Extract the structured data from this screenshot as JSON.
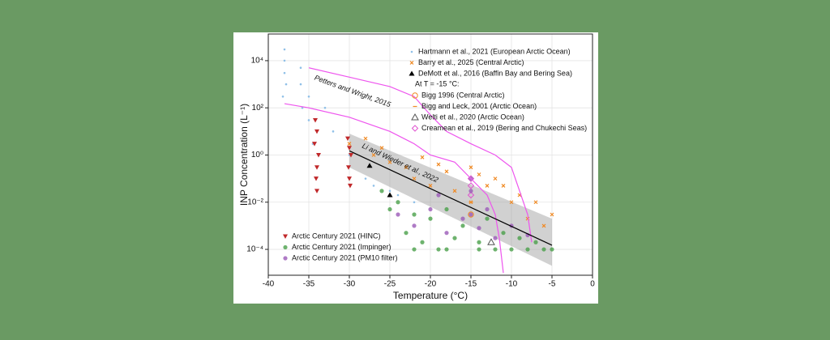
{
  "chart_data": {
    "type": "scatter",
    "xlabel": "Temperature (°C)",
    "ylabel": "INP Concentration (L⁻¹)",
    "xlim": [
      -40,
      0
    ],
    "xticks": [
      -40,
      -35,
      -30,
      -25,
      -20,
      -15,
      -10,
      -5,
      0
    ],
    "ylim": [
      8e-06,
      135000
    ],
    "log_y": true,
    "grid": true,
    "yticks": [
      {
        "value": 0.0001,
        "label": "10⁻⁴"
      },
      {
        "value": 0.01,
        "label": "10⁻²"
      },
      {
        "value": 1,
        "label": "10⁰"
      },
      {
        "value": 100,
        "label": "10²"
      },
      {
        "value": 10000,
        "label": "10⁴"
      }
    ],
    "legend_header": "At T = -15 °C:",
    "annotations": [
      "Petters and Wright, 2015",
      "Li and Wieder et al., 2022"
    ],
    "band": {
      "color": "#9a9a9a",
      "x": [
        -30,
        -5
      ],
      "lower": [
        0.3,
        2e-05
      ],
      "upper": [
        8,
        0.002
      ]
    },
    "curves": [
      {
        "color": "#ee55ee",
        "x": [
          -35,
          -30,
          -25,
          -22,
          -20,
          -18,
          -15,
          -12,
          -10,
          -9,
          -8,
          -7.5
        ],
        "values": [
          5000,
          2000,
          800,
          300,
          50,
          10,
          3,
          1,
          0.3,
          0.03,
          0.003,
          0.0002
        ]
      },
      {
        "color": "#ee55ee",
        "x": [
          -38,
          -35,
          -30,
          -25,
          -22,
          -20,
          -17,
          -15,
          -13,
          -12,
          -11.5,
          -11
        ],
        "values": [
          150,
          100,
          40,
          10,
          3,
          1,
          0.5,
          0.1,
          0.02,
          0.003,
          0.0003,
          1e-05
        ]
      },
      {
        "color": "#000000",
        "x": [
          -30,
          -5
        ],
        "values": [
          1.5,
          0.00015
        ]
      }
    ],
    "series": [
      {
        "name": "Hartmann et al., 2021 (European Arctic Ocean)",
        "color": "#8fc0e8",
        "marker": "dot",
        "x": [
          -38,
          -38,
          -38,
          -37.8,
          -38.2,
          -36,
          -36,
          -35.8,
          -35,
          -35,
          -34.5,
          -33,
          -32,
          -30,
          -28,
          -27,
          -25,
          -24,
          -22
        ],
        "values": [
          30000,
          10000,
          3000,
          1000,
          300,
          5000,
          1000,
          100,
          300,
          30,
          3,
          100,
          10,
          1,
          0.1,
          0.05,
          0.03,
          0.02,
          0.01
        ]
      },
      {
        "name": "Barry et al., 2025 (Central Arctic)",
        "color": "#f08a24",
        "marker": "x",
        "x": [
          -30,
          -28,
          -27,
          -25,
          -23,
          -22,
          -20,
          -18,
          -17,
          -15,
          -15,
          -13,
          -12,
          -10,
          -8,
          -6,
          -5,
          -26,
          -21,
          -19,
          -14,
          -11,
          -9,
          -7
        ],
        "values": [
          3,
          5,
          1,
          0.5,
          0.3,
          0.1,
          0.05,
          0.2,
          0.03,
          0.3,
          0.01,
          0.05,
          0.1,
          0.01,
          0.002,
          0.001,
          0.003,
          2,
          0.8,
          0.4,
          0.15,
          0.05,
          0.02,
          0.01
        ]
      },
      {
        "name": "DeMott et al., 2016 (Baffin Bay and Bering Sea)",
        "color": "#000000",
        "marker": "triangle",
        "x": [
          -27.5,
          -25
        ],
        "values": [
          0.35,
          0.02
        ]
      },
      {
        "name": "Bigg 1996 (Central Arctic)",
        "color": "#f08a24",
        "marker": "circle-open",
        "x": [
          -15
        ],
        "values": [
          0.003
        ]
      },
      {
        "name": "Bigg and Leck, 2001 (Arctic Ocean)",
        "color": "#f08a24",
        "marker": "dash",
        "x": [
          -15
        ],
        "values": [
          0.01
        ]
      },
      {
        "name": "Welti et al., 2020 (Arctic Ocean)",
        "color": "#555555",
        "marker": "triangle-open",
        "x": [
          -12.5
        ],
        "values": [
          0.0002
        ]
      },
      {
        "name": "Creamean et al., 2019 (Bering and Chukechi Seas)",
        "color": "#e055d0",
        "marker": "diamond-open",
        "x": [
          -15,
          -15,
          -15
        ],
        "values": [
          0.1,
          0.05,
          0.02
        ]
      },
      {
        "name": "Arctic Century 2021 (HINC)",
        "color": "#c0282a",
        "marker": "tri-down",
        "x": [
          -34.2,
          -34,
          -34.3,
          -33.8,
          -34,
          -34.1,
          -34,
          -30.2,
          -30,
          -29.8,
          -30.1,
          -30,
          -29.9
        ],
        "values": [
          30,
          10,
          3,
          1,
          0.3,
          0.1,
          0.03,
          5,
          2,
          1,
          0.3,
          0.1,
          0.05
        ]
      },
      {
        "name": "Arctic Century 2021 (Impinger)",
        "color": "#4aa04a",
        "marker": "circle",
        "x": [
          -26,
          -25,
          -24,
          -23,
          -22,
          -21,
          -20,
          -19,
          -18,
          -17,
          -16,
          -14,
          -13,
          -12,
          -11,
          -10,
          -9,
          -8,
          -7,
          -6,
          -5,
          -22,
          -18,
          -14
        ],
        "values": [
          0.03,
          0.005,
          0.01,
          0.0005,
          0.003,
          0.0002,
          0.002,
          0.0001,
          0.005,
          0.0003,
          0.001,
          0.0002,
          0.002,
          0.0001,
          0.0005,
          0.0001,
          0.0003,
          0.0001,
          0.0002,
          0.0001,
          0.0001,
          0.0001,
          0.0001,
          0.0001
        ]
      },
      {
        "name": "Arctic Century 2021 (PM10 filter)",
        "color": "#9b5ab8",
        "marker": "circle",
        "x": [
          -24,
          -22,
          -20,
          -18,
          -16,
          -15,
          -15,
          -15,
          -14,
          -12,
          -10,
          -8,
          -19,
          -13
        ],
        "values": [
          0.003,
          0.001,
          0.005,
          0.0005,
          0.002,
          0.1,
          0.03,
          0.003,
          0.0008,
          0.0003,
          0.001,
          0.0004,
          0.02,
          0.005
        ]
      }
    ]
  }
}
